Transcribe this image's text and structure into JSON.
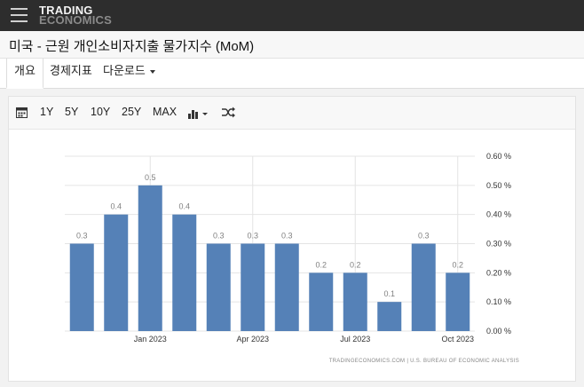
{
  "header": {
    "logo_line1": "TRADING",
    "logo_line2": "ECONOMICS"
  },
  "page_title": "미국 - 근원 개인소비자지출 물가지수 (MoM)",
  "tabs": [
    {
      "label": "개요"
    },
    {
      "label": "경제지표"
    },
    {
      "label": "다운로드"
    }
  ],
  "toolbar": {
    "ranges": [
      "1Y",
      "5Y",
      "10Y",
      "25Y",
      "MAX"
    ],
    "icons": [
      "calendar-icon",
      "bar-chart-icon",
      "shuffle-icon"
    ]
  },
  "footer": {
    "source": "TRADINGECONOMICS.COM | U.S. BUREAU OF ECONOMIC ANALYSIS"
  },
  "chart_data": {
    "type": "bar",
    "categories": [
      "2022-11",
      "2022-12",
      "2023-01",
      "2023-02",
      "2023-03",
      "2023-04",
      "2023-05",
      "2023-06",
      "2023-07",
      "2023-08",
      "2023-09",
      "2023-10"
    ],
    "values": [
      0.3,
      0.4,
      0.5,
      0.4,
      0.3,
      0.3,
      0.3,
      0.2,
      0.2,
      0.1,
      0.3,
      0.2
    ],
    "data_labels": [
      "0.3",
      "0.4",
      "0.5",
      "0.4",
      "0.3",
      "0.3",
      "0.3",
      "0.2",
      "0.2",
      "0.1",
      "0.3",
      "0.2"
    ],
    "x_tick_labels": [
      {
        "index": 2,
        "label": "Jan 2023"
      },
      {
        "index": 5,
        "label": "Apr 2023"
      },
      {
        "index": 8,
        "label": "Jul 2023"
      },
      {
        "index": 11,
        "label": "Oct 2023"
      }
    ],
    "y_ticks": [
      0.0,
      0.1,
      0.2,
      0.3,
      0.4,
      0.5,
      0.6
    ],
    "y_tick_labels": [
      "0.00 %",
      "0.10 %",
      "0.20 %",
      "0.30 %",
      "0.40 %",
      "0.50 %",
      "0.60 %"
    ],
    "ylim": [
      0,
      0.6
    ],
    "y_axis_side": "right",
    "grid": true,
    "colors": {
      "bar": "#5581b7",
      "grid": "#e4e4e4",
      "label": "#808080"
    }
  }
}
